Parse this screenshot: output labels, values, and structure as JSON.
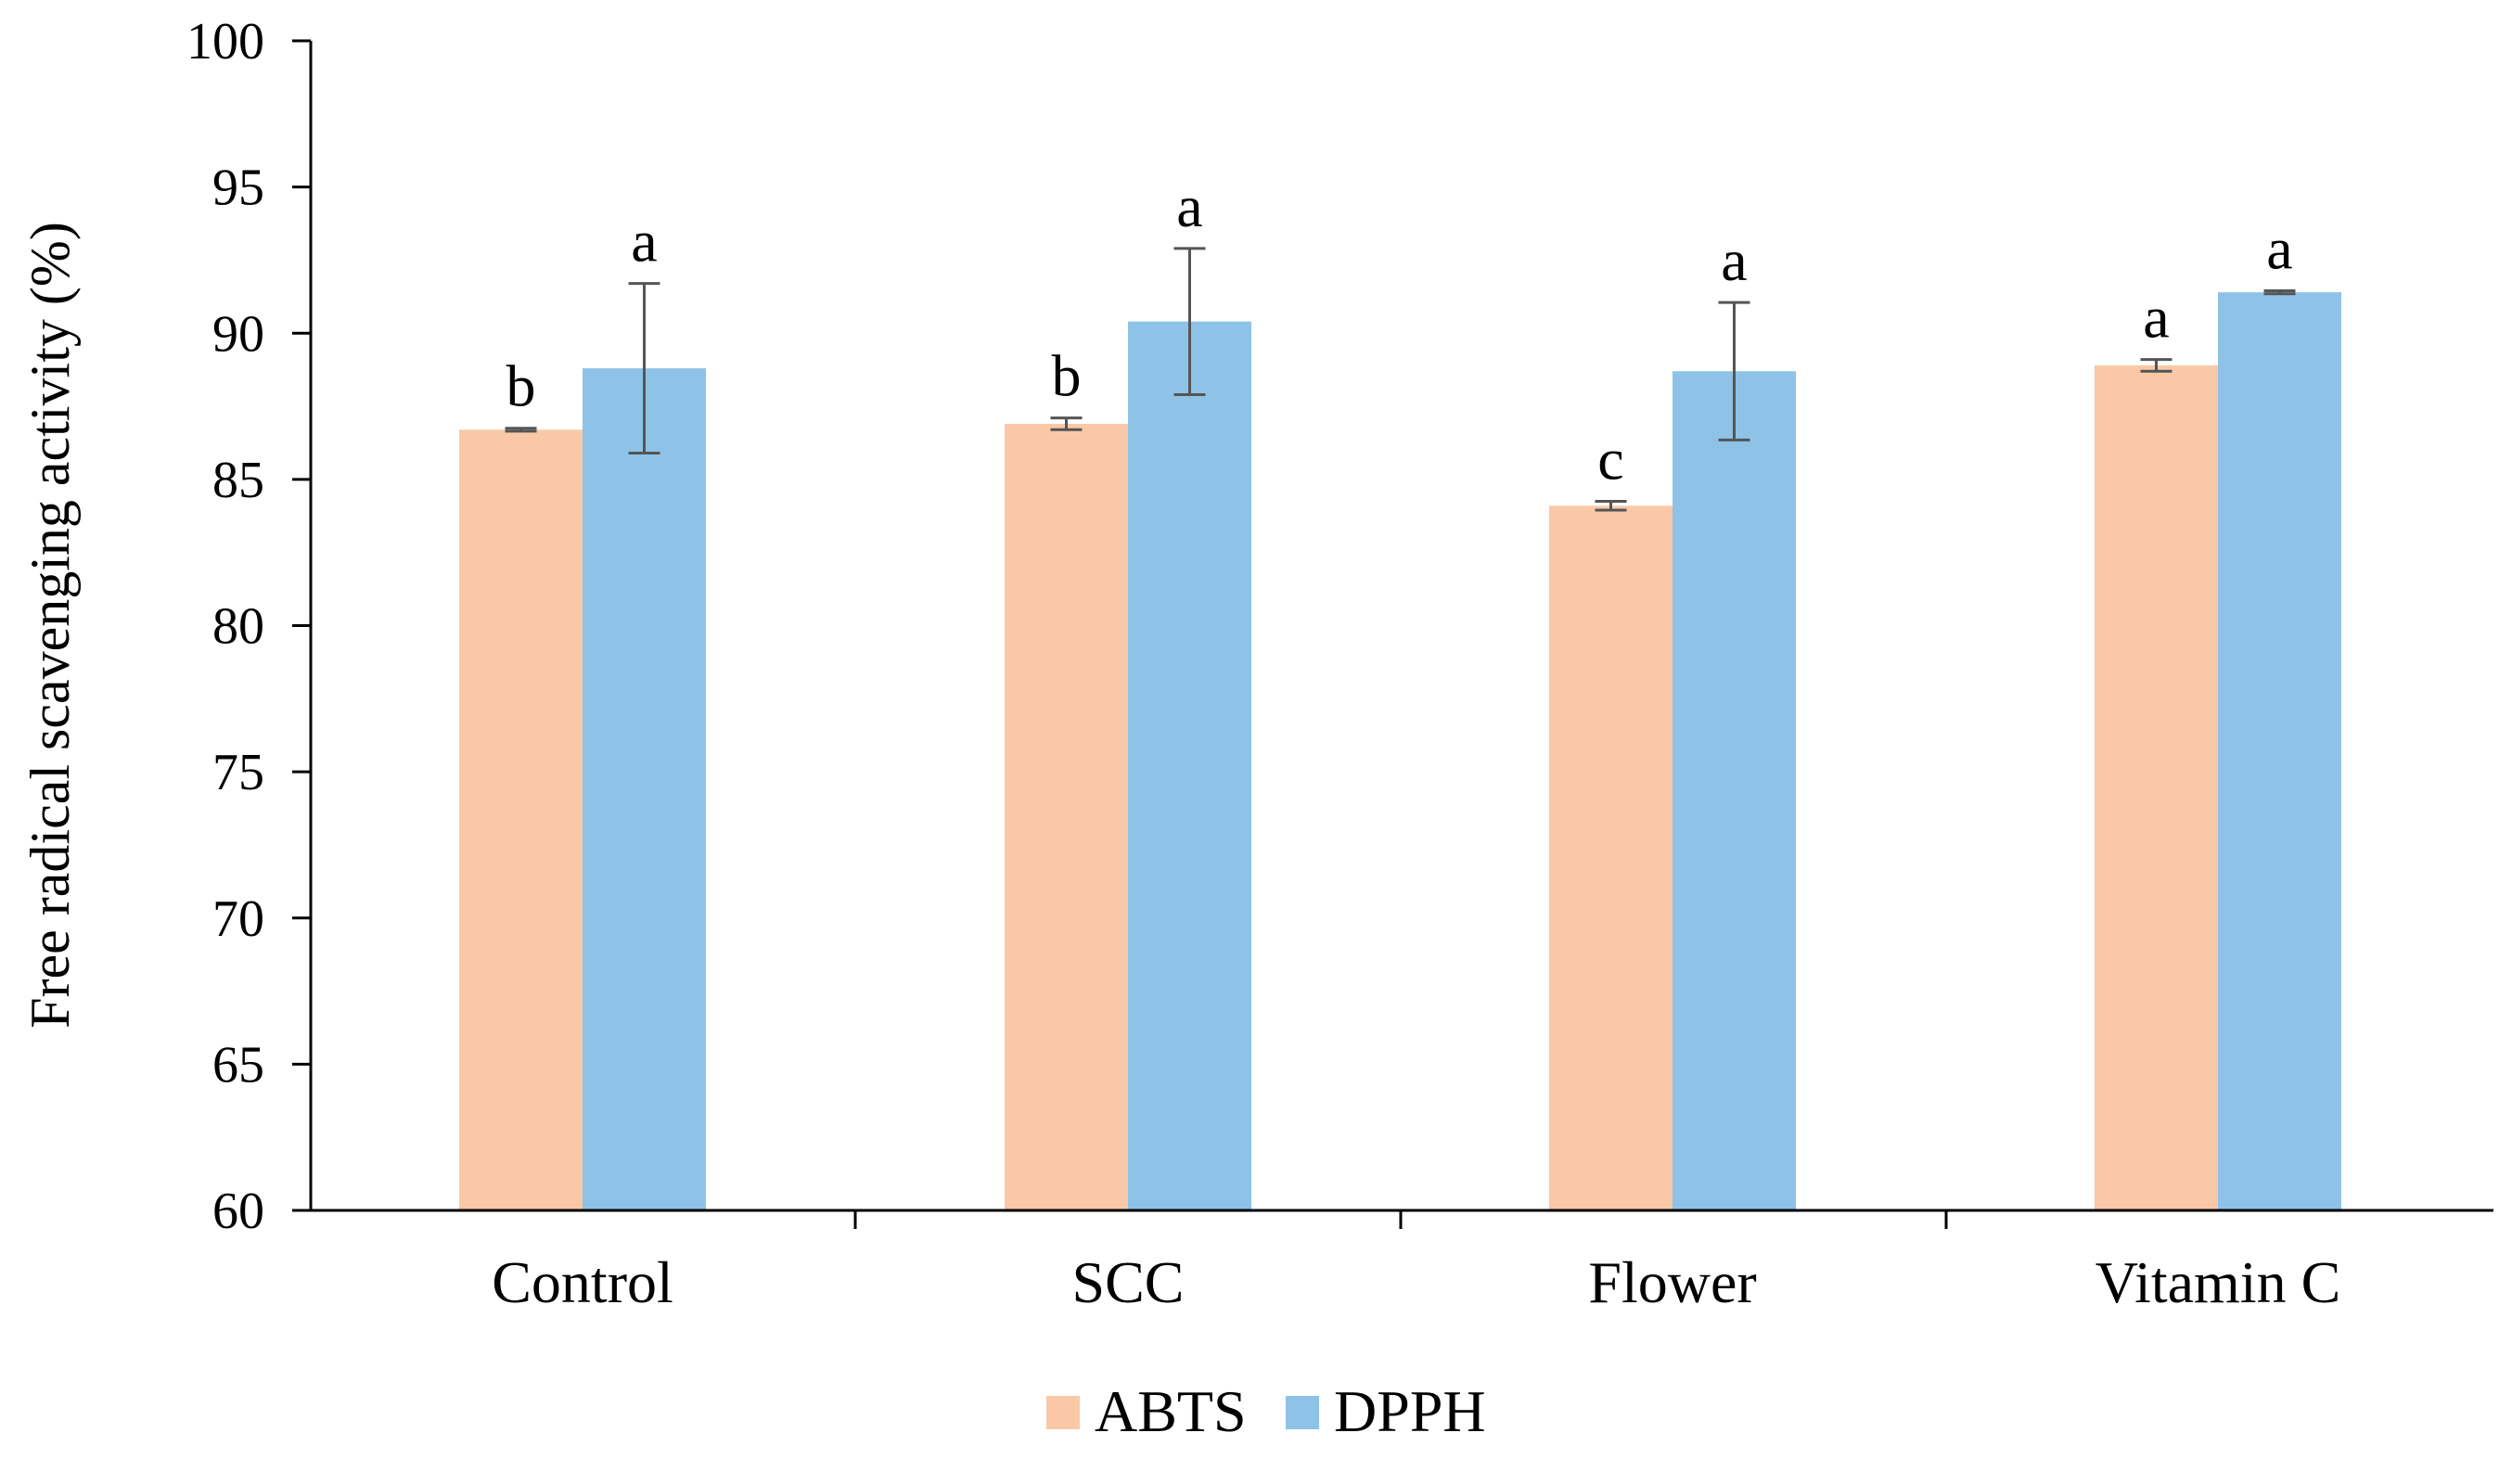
{
  "chart_data": {
    "type": "bar",
    "title": "",
    "xlabel": "",
    "ylabel": "Free radical scavenging activity (%)",
    "ylim": [
      60,
      100
    ],
    "yticks": [
      60,
      65,
      70,
      75,
      80,
      85,
      90,
      95,
      100
    ],
    "grid": false,
    "legend_position": "bottom-center",
    "categories": [
      "Control",
      "SCC",
      "Flower",
      "Vitamin C"
    ],
    "series": [
      {
        "name": "ABTS",
        "color": "#F9C9A7",
        "values": [
          86.7,
          86.9,
          84.1,
          88.9
        ],
        "errors": [
          0.05,
          0.2,
          0.15,
          0.2
        ],
        "significance": [
          "b",
          "b",
          "c",
          "a"
        ]
      },
      {
        "name": "DPPH",
        "color": "#8EC3E7",
        "values": [
          88.8,
          90.4,
          88.7,
          91.4
        ],
        "errors": [
          2.9,
          2.5,
          2.35,
          0.05
        ],
        "significance": [
          "a",
          "a",
          "a",
          "a"
        ]
      }
    ]
  }
}
